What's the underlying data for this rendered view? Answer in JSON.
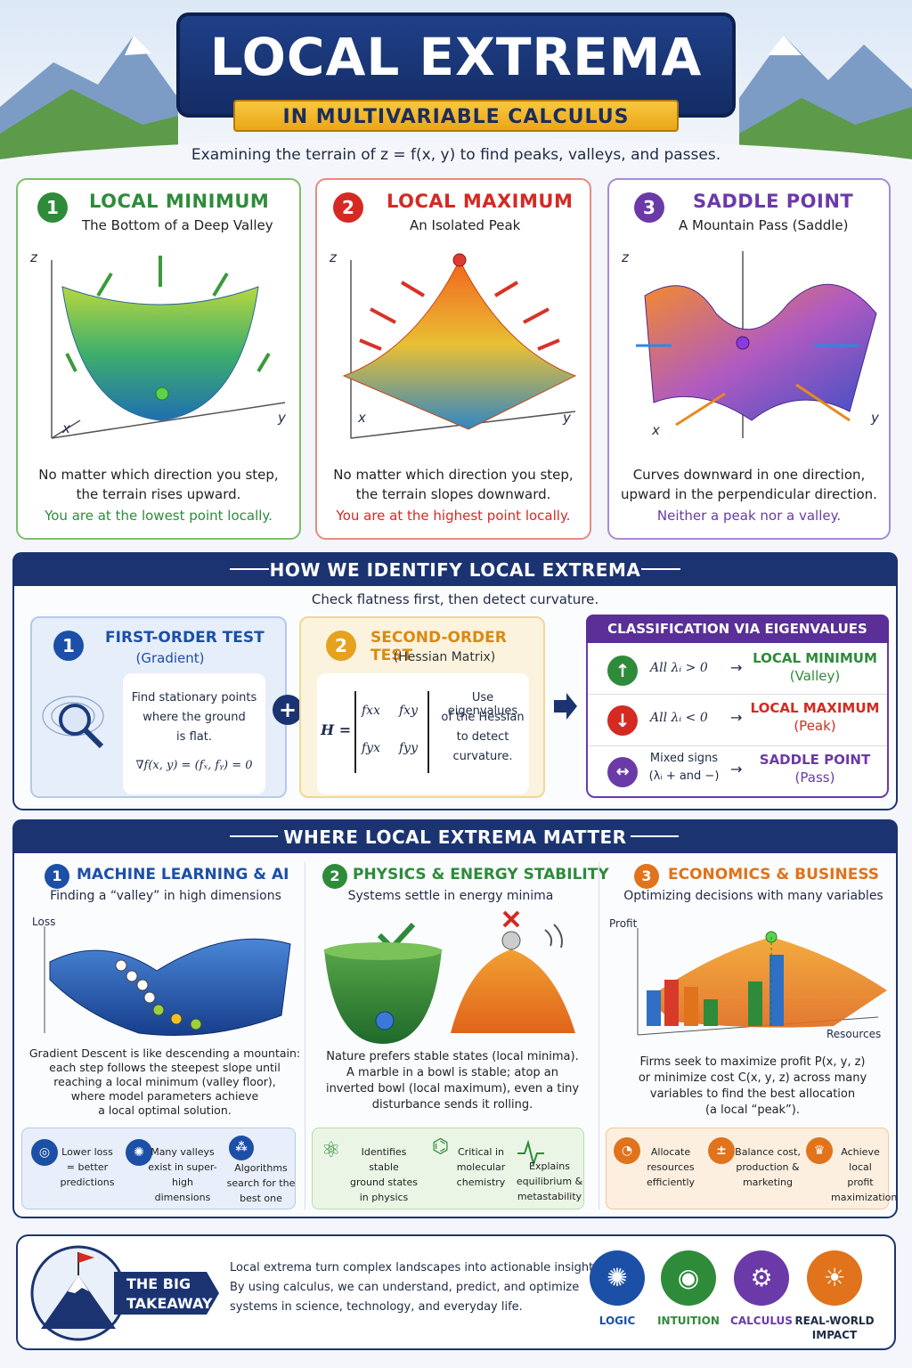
{
  "header": {
    "title": "LOCAL EXTREMA",
    "subtitle": "IN MULTIVARIABLE CALCULUS",
    "intro": "Examining the terrain of z = f(x, y) to find peaks, valleys, and passes."
  },
  "cards": [
    {
      "num": "1",
      "title": "LOCAL MINIMUM",
      "subtitle": "The Bottom of a Deep Valley",
      "text1": "No matter which direction you step,",
      "text2": "the terrain rises upward.",
      "highlight": "You are at the lowest point locally.",
      "color": "#2e8b3a"
    },
    {
      "num": "2",
      "title": "LOCAL MAXIMUM",
      "subtitle": "An Isolated Peak",
      "text1": "No matter which direction you step,",
      "text2": "the terrain slopes downward.",
      "highlight": "You are at the highest point locally.",
      "color": "#d42a22"
    },
    {
      "num": "3",
      "title": "SADDLE POINT",
      "subtitle": "A Mountain Pass (Saddle)",
      "text1": "Curves downward in one direction,",
      "text2": "upward in the perpendicular direction.",
      "highlight": "Neither a peak nor a valley.",
      "color": "#6b3aa8"
    }
  ],
  "axes": {
    "x": "x",
    "y": "y",
    "z": "z"
  },
  "identify": {
    "title": "HOW WE IDENTIFY LOCAL EXTREMA",
    "subtitle": "Check flatness first, then detect curvature.",
    "first": {
      "num": "1",
      "title": "FIRST-ORDER TEST",
      "sub": "(Gradient)",
      "l1": "Find stationary points",
      "l2": "where the ground",
      "l3": "is flat.",
      "formula": "∇f(x, y) = (fₓ, fᵧ) = 0"
    },
    "plus": "+",
    "second": {
      "num": "2",
      "title": "SECOND-ORDER TEST",
      "sub": "(Hessian Matrix)",
      "h": "H =",
      "m11": "fxx",
      "m12": "fxy",
      "m21": "fyx",
      "m22": "fyy",
      "l1": "Use eigenvalues",
      "l2": "of the Hessian",
      "l3": "to detect",
      "l4": "curvature."
    },
    "classification": {
      "title": "CLASSIFICATION VIA EIGENVALUES",
      "rows": [
        {
          "cond": "All λᵢ > 0",
          "arrow": "→",
          "res1": "LOCAL MINIMUM",
          "res2": "(Valley)",
          "color": "#2e8b3a",
          "icon": "↑"
        },
        {
          "cond": "All λᵢ < 0",
          "arrow": "→",
          "res1": "LOCAL MAXIMUM",
          "res2": "(Peak)",
          "color": "#d42a22",
          "icon": "↓"
        },
        {
          "cond": "Mixed signs",
          "cond2": "(λᵢ + and −)",
          "arrow": "→",
          "res1": "SADDLE POINT",
          "res2": "(Pass)",
          "color": "#6b3aa8",
          "icon": "↔"
        }
      ]
    }
  },
  "matter": {
    "title": "WHERE LOCAL EXTREMA MATTER",
    "cols": [
      {
        "num": "1",
        "title": "MACHINE LEARNING & AI",
        "sub": "Finding a “valley” in high dimensions",
        "color": "#1c4fa6",
        "label": "Loss",
        "t1": "Gradient Descent is like descending a mountain:",
        "t2": "each step follows the steepest slope until",
        "t3": "reaching a local minimum (valley floor),",
        "t4": "where model parameters achieve",
        "t5": "a local optimal solution.",
        "feats": [
          [
            "Lower loss",
            "= better",
            "predictions"
          ],
          [
            "Many valleys",
            "exist in super-",
            "high dimensions"
          ],
          [
            "Algorithms",
            "search for the",
            "best one"
          ]
        ]
      },
      {
        "num": "2",
        "title": "PHYSICS & ENERGY STABILITY",
        "sub": "Systems settle in energy minima",
        "color": "#2e8b3a",
        "t1": "Nature prefers stable states (local minima).",
        "t2": "A marble in a bowl is stable; atop an",
        "t3": "inverted bowl (local maximum), even a tiny",
        "t4": "disturbance sends it rolling.",
        "feats": [
          [
            "Identifies stable",
            "ground states",
            "in physics"
          ],
          [
            "Critical in",
            "molecular",
            "chemistry"
          ],
          [
            "Explains",
            "equilibrium &",
            "metastability"
          ]
        ]
      },
      {
        "num": "3",
        "title": "ECONOMICS & BUSINESS",
        "sub": "Optimizing decisions with many variables",
        "color": "#e0731b",
        "label": "Profit",
        "label2": "Resources",
        "t1": "Firms seek to maximize profit P(x, y, z)",
        "t2": "or minimize cost C(x, y, z) across many",
        "t3": "variables to find the best allocation",
        "t4": "(a local “peak”).",
        "feats": [
          [
            "Allocate",
            "resources",
            "efficiently"
          ],
          [
            "Balance cost,",
            "production &",
            "marketing"
          ],
          [
            "Achieve local",
            "profit",
            "maximization"
          ]
        ]
      }
    ]
  },
  "takeaway": {
    "label1": "THE BIG",
    "label2": "TAKEAWAY",
    "t1": "Local extrema turn complex landscapes into actionable insights.",
    "t2": "By using calculus, we can understand, predict, and optimize",
    "t3": "systems in science, technology, and everyday life.",
    "icons": [
      {
        "label": "LOGIC",
        "color": "#1c4fa6"
      },
      {
        "label": "INTUITION",
        "color": "#2e8b3a"
      },
      {
        "label": "CALCULUS",
        "color": "#6b3aa8"
      },
      {
        "label": "REAL-WORLD",
        "label2": "IMPACT",
        "color": "#e0731b"
      }
    ]
  }
}
